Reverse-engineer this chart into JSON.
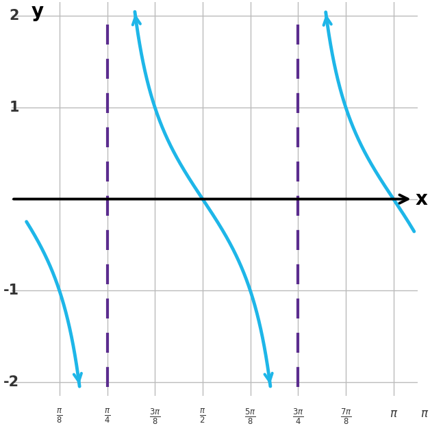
{
  "xlabel": "x",
  "ylabel": "y",
  "xlim_left": 0.0,
  "xlim_right": 3.34,
  "ylim": [
    -2.15,
    2.15
  ],
  "yticks": [
    -2,
    -1,
    1,
    2
  ],
  "xtick_positions": [
    0.3927,
    0.7854,
    1.1781,
    1.5708,
    1.9635,
    2.3562,
    2.7489,
    3.1416
  ],
  "xtick_labels": [
    "\\frac{\\pi}{8}",
    "\\frac{\\pi}{4}",
    "\\frac{3\\pi}{8}",
    "\\frac{\\pi}{2}",
    "\\frac{5\\pi}{8}",
    "\\frac{3\\pi}{4}",
    "\\frac{7\\pi}{8}",
    "\\pi"
  ],
  "asymptotes": [
    0.7854,
    2.3562
  ],
  "curve_color": "#1EB6E8",
  "asymptote_color": "#5B2D8E",
  "axis_color": "#000000",
  "grid_color": "#BBBBBB",
  "grid_lw": 1.0,
  "curve_lw": 3.5,
  "asymptote_lw": 3.0,
  "clip_val": 2.05,
  "bg_color": "#FFFFFF",
  "figsize": [
    6.28,
    6.22
  ],
  "dpi": 100,
  "yaxis_x": 0.12,
  "xaxis_extends_to": 3.3
}
